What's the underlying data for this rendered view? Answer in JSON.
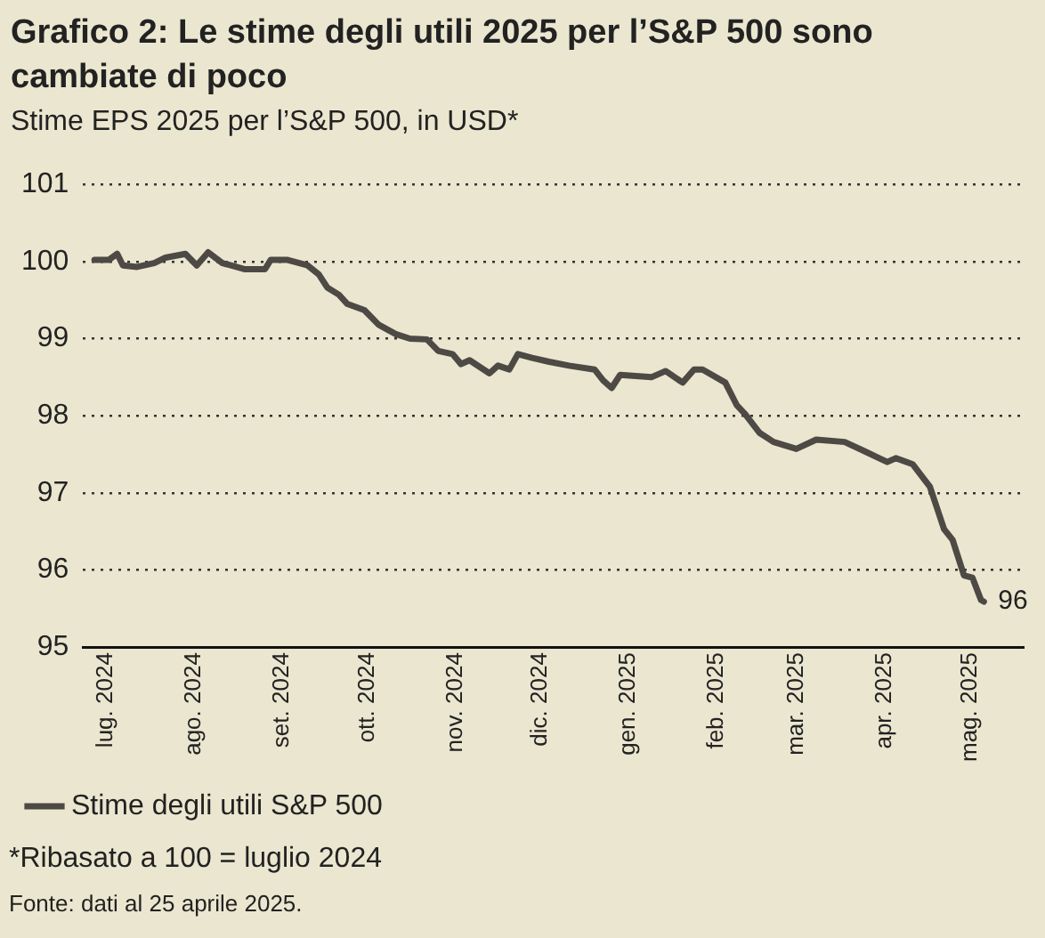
{
  "chart_data": {
    "type": "line",
    "title": "Grafico 2: Le stime degli utili 2025 per l’S&P 500 sono cambiate di poco",
    "subtitle": "Stime EPS 2025 per l’S&P 500, in USD*",
    "x": [
      "2024-06-27",
      "2024-07-02",
      "2024-07-05",
      "2024-07-07",
      "2024-07-12",
      "2024-07-18",
      "2024-07-22",
      "2024-07-29",
      "2024-08-02",
      "2024-08-06",
      "2024-08-11",
      "2024-08-19",
      "2024-08-26",
      "2024-08-28",
      "2024-09-03",
      "2024-09-10",
      "2024-09-14",
      "2024-09-17",
      "2024-09-21",
      "2024-09-24",
      "2024-09-30",
      "2024-10-05",
      "2024-10-11",
      "2024-10-16",
      "2024-10-22",
      "2024-10-26",
      "2024-10-31",
      "2024-11-03",
      "2024-11-06",
      "2024-11-13",
      "2024-11-16",
      "2024-11-20",
      "2024-11-23",
      "2024-11-28",
      "2024-12-04",
      "2024-12-11",
      "2024-12-20",
      "2024-12-23",
      "2024-12-26",
      "2024-12-29",
      "2025-01-09",
      "2025-01-14",
      "2025-01-20",
      "2025-01-24",
      "2025-01-27",
      "2025-02-04",
      "2025-02-08",
      "2025-02-11",
      "2025-02-16",
      "2025-02-21",
      "2025-03-01",
      "2025-03-08",
      "2025-03-18",
      "2025-03-25",
      "2025-04-02",
      "2025-04-05",
      "2025-04-11",
      "2025-04-17",
      "2025-04-20",
      "2025-04-22",
      "2025-04-25",
      "2025-04-29",
      "2025-05-02",
      "2025-05-05",
      "2025-05-06"
    ],
    "series": [
      {
        "name": "Stime degli utili S&P 500",
        "color": "#4d4a45",
        "values": [
          100.02,
          100.02,
          100.1,
          99.95,
          99.93,
          99.98,
          100.05,
          100.1,
          99.95,
          100.12,
          99.98,
          99.9,
          99.9,
          100.02,
          100.02,
          99.95,
          99.83,
          99.66,
          99.57,
          99.45,
          99.37,
          99.18,
          99.06,
          99.0,
          98.99,
          98.84,
          98.8,
          98.67,
          98.72,
          98.55,
          98.65,
          98.6,
          98.8,
          98.75,
          98.7,
          98.65,
          98.6,
          98.46,
          98.36,
          98.53,
          98.5,
          98.58,
          98.43,
          98.6,
          98.6,
          98.43,
          98.14,
          98.02,
          97.78,
          97.66,
          97.57,
          97.69,
          97.66,
          97.54,
          97.4,
          97.45,
          97.37,
          97.08,
          96.75,
          96.53,
          96.39,
          95.93,
          95.9,
          95.61,
          95.59
        ]
      }
    ],
    "xlim": [
      "2024-06-23",
      "2025-05-20"
    ],
    "xticks": [
      {
        "value": "2024-07-01",
        "label": "lug. 2024"
      },
      {
        "value": "2024-08-01",
        "label": "ago. 2024"
      },
      {
        "value": "2024-09-01",
        "label": "set. 2024"
      },
      {
        "value": "2024-10-01",
        "label": "ott. 2024"
      },
      {
        "value": "2024-11-01",
        "label": "nov. 2024"
      },
      {
        "value": "2024-12-01",
        "label": "dic. 2024"
      },
      {
        "value": "2025-01-01",
        "label": "gen. 2025"
      },
      {
        "value": "2025-02-01",
        "label": "feb. 2025"
      },
      {
        "value": "2025-03-01",
        "label": "mar. 2025"
      },
      {
        "value": "2025-04-01",
        "label": "apr. 2025"
      },
      {
        "value": "2025-05-01",
        "label": "mag. 2025"
      }
    ],
    "ylim": [
      95,
      101
    ],
    "yticks": [
      95,
      96,
      97,
      98,
      99,
      100,
      101
    ],
    "grid": "y",
    "legend": "bottom",
    "marker": "none",
    "line_style": "solid",
    "annotations": [
      {
        "text": "96",
        "x": "2025-05-06",
        "y": 95.59
      },
      "*Ribasato a 100 = luglio 2024",
      "Fonte: dati al 25 aprile 2025."
    ]
  }
}
